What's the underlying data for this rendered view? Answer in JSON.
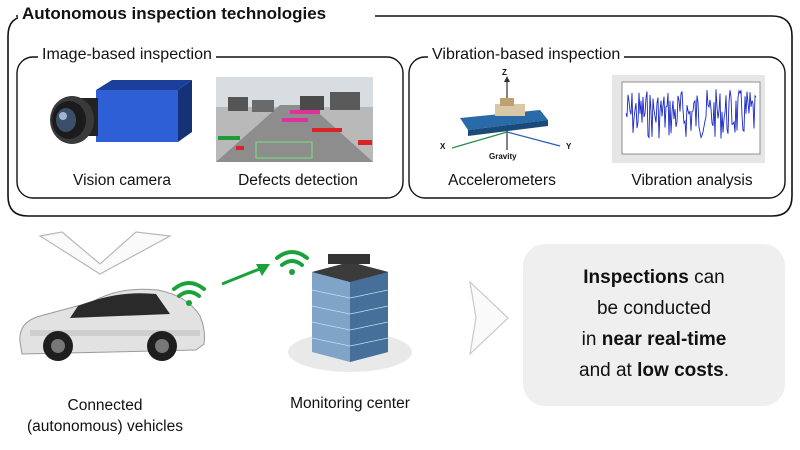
{
  "outer_title": "Autonomous inspection technologies",
  "image_group": {
    "title": "Image-based inspection",
    "items": [
      {
        "caption": "Vision camera",
        "icon": "vision-camera-icon"
      },
      {
        "caption": "Defects detection",
        "icon": "road-defects-image"
      }
    ]
  },
  "vibration_group": {
    "title": "Vibration-based inspection",
    "items": [
      {
        "caption": "Accelerometers",
        "icon": "accelerometer-icon",
        "axis_labels": {
          "z": "Z",
          "x": "X",
          "y": "Y",
          "gravity": "Gravity"
        }
      },
      {
        "caption": "Vibration analysis",
        "icon": "vibration-plot-image"
      }
    ]
  },
  "vehicles": {
    "caption_line1": "Connected",
    "caption_line2": "(autonomous) vehicles",
    "icon": "car-icon"
  },
  "monitoring": {
    "caption": "Monitoring center",
    "icon": "building-icon"
  },
  "result": {
    "line1_bold": "Inspections",
    "line1_rest": " can",
    "line2": "be conducted",
    "line3_pre": "in ",
    "line3_bold": "near real-time",
    "line4_pre": "and at ",
    "line4_bold": "low costs",
    "line4_post": "."
  },
  "colors": {
    "wifi": "#1aa23a",
    "frame": "#111111",
    "result_bg": "#efefef",
    "camera_body": "#2f5fd6"
  }
}
